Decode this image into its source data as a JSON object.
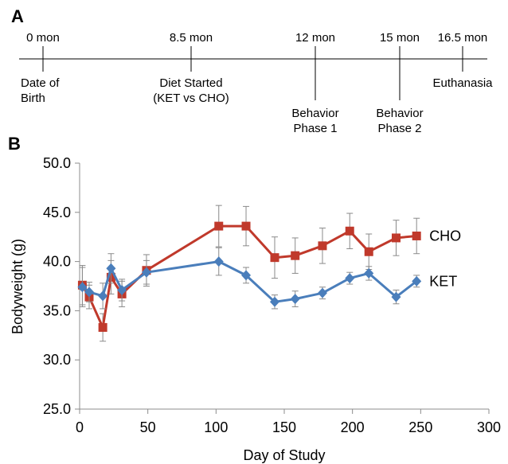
{
  "panels": {
    "a": "A",
    "b": "B"
  },
  "timeline": {
    "ticks": [
      {
        "time": "0 mon",
        "events": [
          "Date of",
          "Birth"
        ],
        "placement": "above"
      },
      {
        "time": "8.5 mon",
        "events": [
          "Diet Started",
          "(KET vs CHO)"
        ],
        "placement": "above"
      },
      {
        "time": "12 mon",
        "events": [
          "Behavior",
          "Phase 1"
        ],
        "placement": "below"
      },
      {
        "time": "15 mon",
        "events": [
          "Behavior",
          "Phase 2"
        ],
        "placement": "below"
      },
      {
        "time": "16.5 mon",
        "events": [
          "Euthanasia"
        ],
        "placement": "above"
      }
    ]
  },
  "chart_data": {
    "type": "line",
    "title": "",
    "xlabel": "Day of Study",
    "ylabel": "Bodyweight (g)",
    "xlim": [
      0,
      300
    ],
    "ylim": [
      25,
      50
    ],
    "xticks": [
      "0",
      "50",
      "100",
      "150",
      "200",
      "250",
      "300"
    ],
    "yticks": [
      "25.0",
      "30.0",
      "35.0",
      "40.0",
      "45.0",
      "50.0"
    ],
    "grid": false,
    "series": [
      {
        "name": "CHO",
        "color": "#c0392b",
        "marker": "square",
        "points": [
          {
            "x": 2,
            "y": 37.6,
            "err": 2.0
          },
          {
            "x": 7,
            "y": 36.4,
            "err": 1.2
          },
          {
            "x": 17,
            "y": 33.3,
            "err": 1.4
          },
          {
            "x": 23,
            "y": 38.4,
            "err": 1.7
          },
          {
            "x": 31,
            "y": 36.7,
            "err": 1.3
          },
          {
            "x": 49,
            "y": 39.1,
            "err": 1.6
          },
          {
            "x": 102,
            "y": 43.6,
            "err": 2.1
          },
          {
            "x": 122,
            "y": 43.6,
            "err": 2.0
          },
          {
            "x": 143,
            "y": 40.4,
            "err": 2.1
          },
          {
            "x": 158,
            "y": 40.6,
            "err": 1.8
          },
          {
            "x": 178,
            "y": 41.6,
            "err": 1.8
          },
          {
            "x": 198,
            "y": 43.1,
            "err": 1.8
          },
          {
            "x": 212,
            "y": 41.0,
            "err": 1.8
          },
          {
            "x": 232,
            "y": 42.4,
            "err": 1.8
          },
          {
            "x": 247,
            "y": 42.6,
            "err": 1.8
          }
        ]
      },
      {
        "name": "KET",
        "color": "#4a7ebb",
        "marker": "diamond",
        "points": [
          {
            "x": 2,
            "y": 37.4,
            "err": 2.0
          },
          {
            "x": 7,
            "y": 36.9,
            "err": 1.0
          },
          {
            "x": 17,
            "y": 36.5,
            "err": 1.3
          },
          {
            "x": 23,
            "y": 39.3,
            "err": 1.5
          },
          {
            "x": 31,
            "y": 37.1,
            "err": 1.1
          },
          {
            "x": 49,
            "y": 38.9,
            "err": 1.2
          },
          {
            "x": 102,
            "y": 40.0,
            "err": 1.4
          },
          {
            "x": 122,
            "y": 38.6,
            "err": 0.8
          },
          {
            "x": 143,
            "y": 35.9,
            "err": 0.7
          },
          {
            "x": 158,
            "y": 36.2,
            "err": 0.8
          },
          {
            "x": 178,
            "y": 36.8,
            "err": 0.6
          },
          {
            "x": 198,
            "y": 38.3,
            "err": 0.6
          },
          {
            "x": 212,
            "y": 38.8,
            "err": 0.7
          },
          {
            "x": 232,
            "y": 36.4,
            "err": 0.7
          },
          {
            "x": 247,
            "y": 38.0,
            "err": 0.6
          }
        ]
      }
    ]
  }
}
